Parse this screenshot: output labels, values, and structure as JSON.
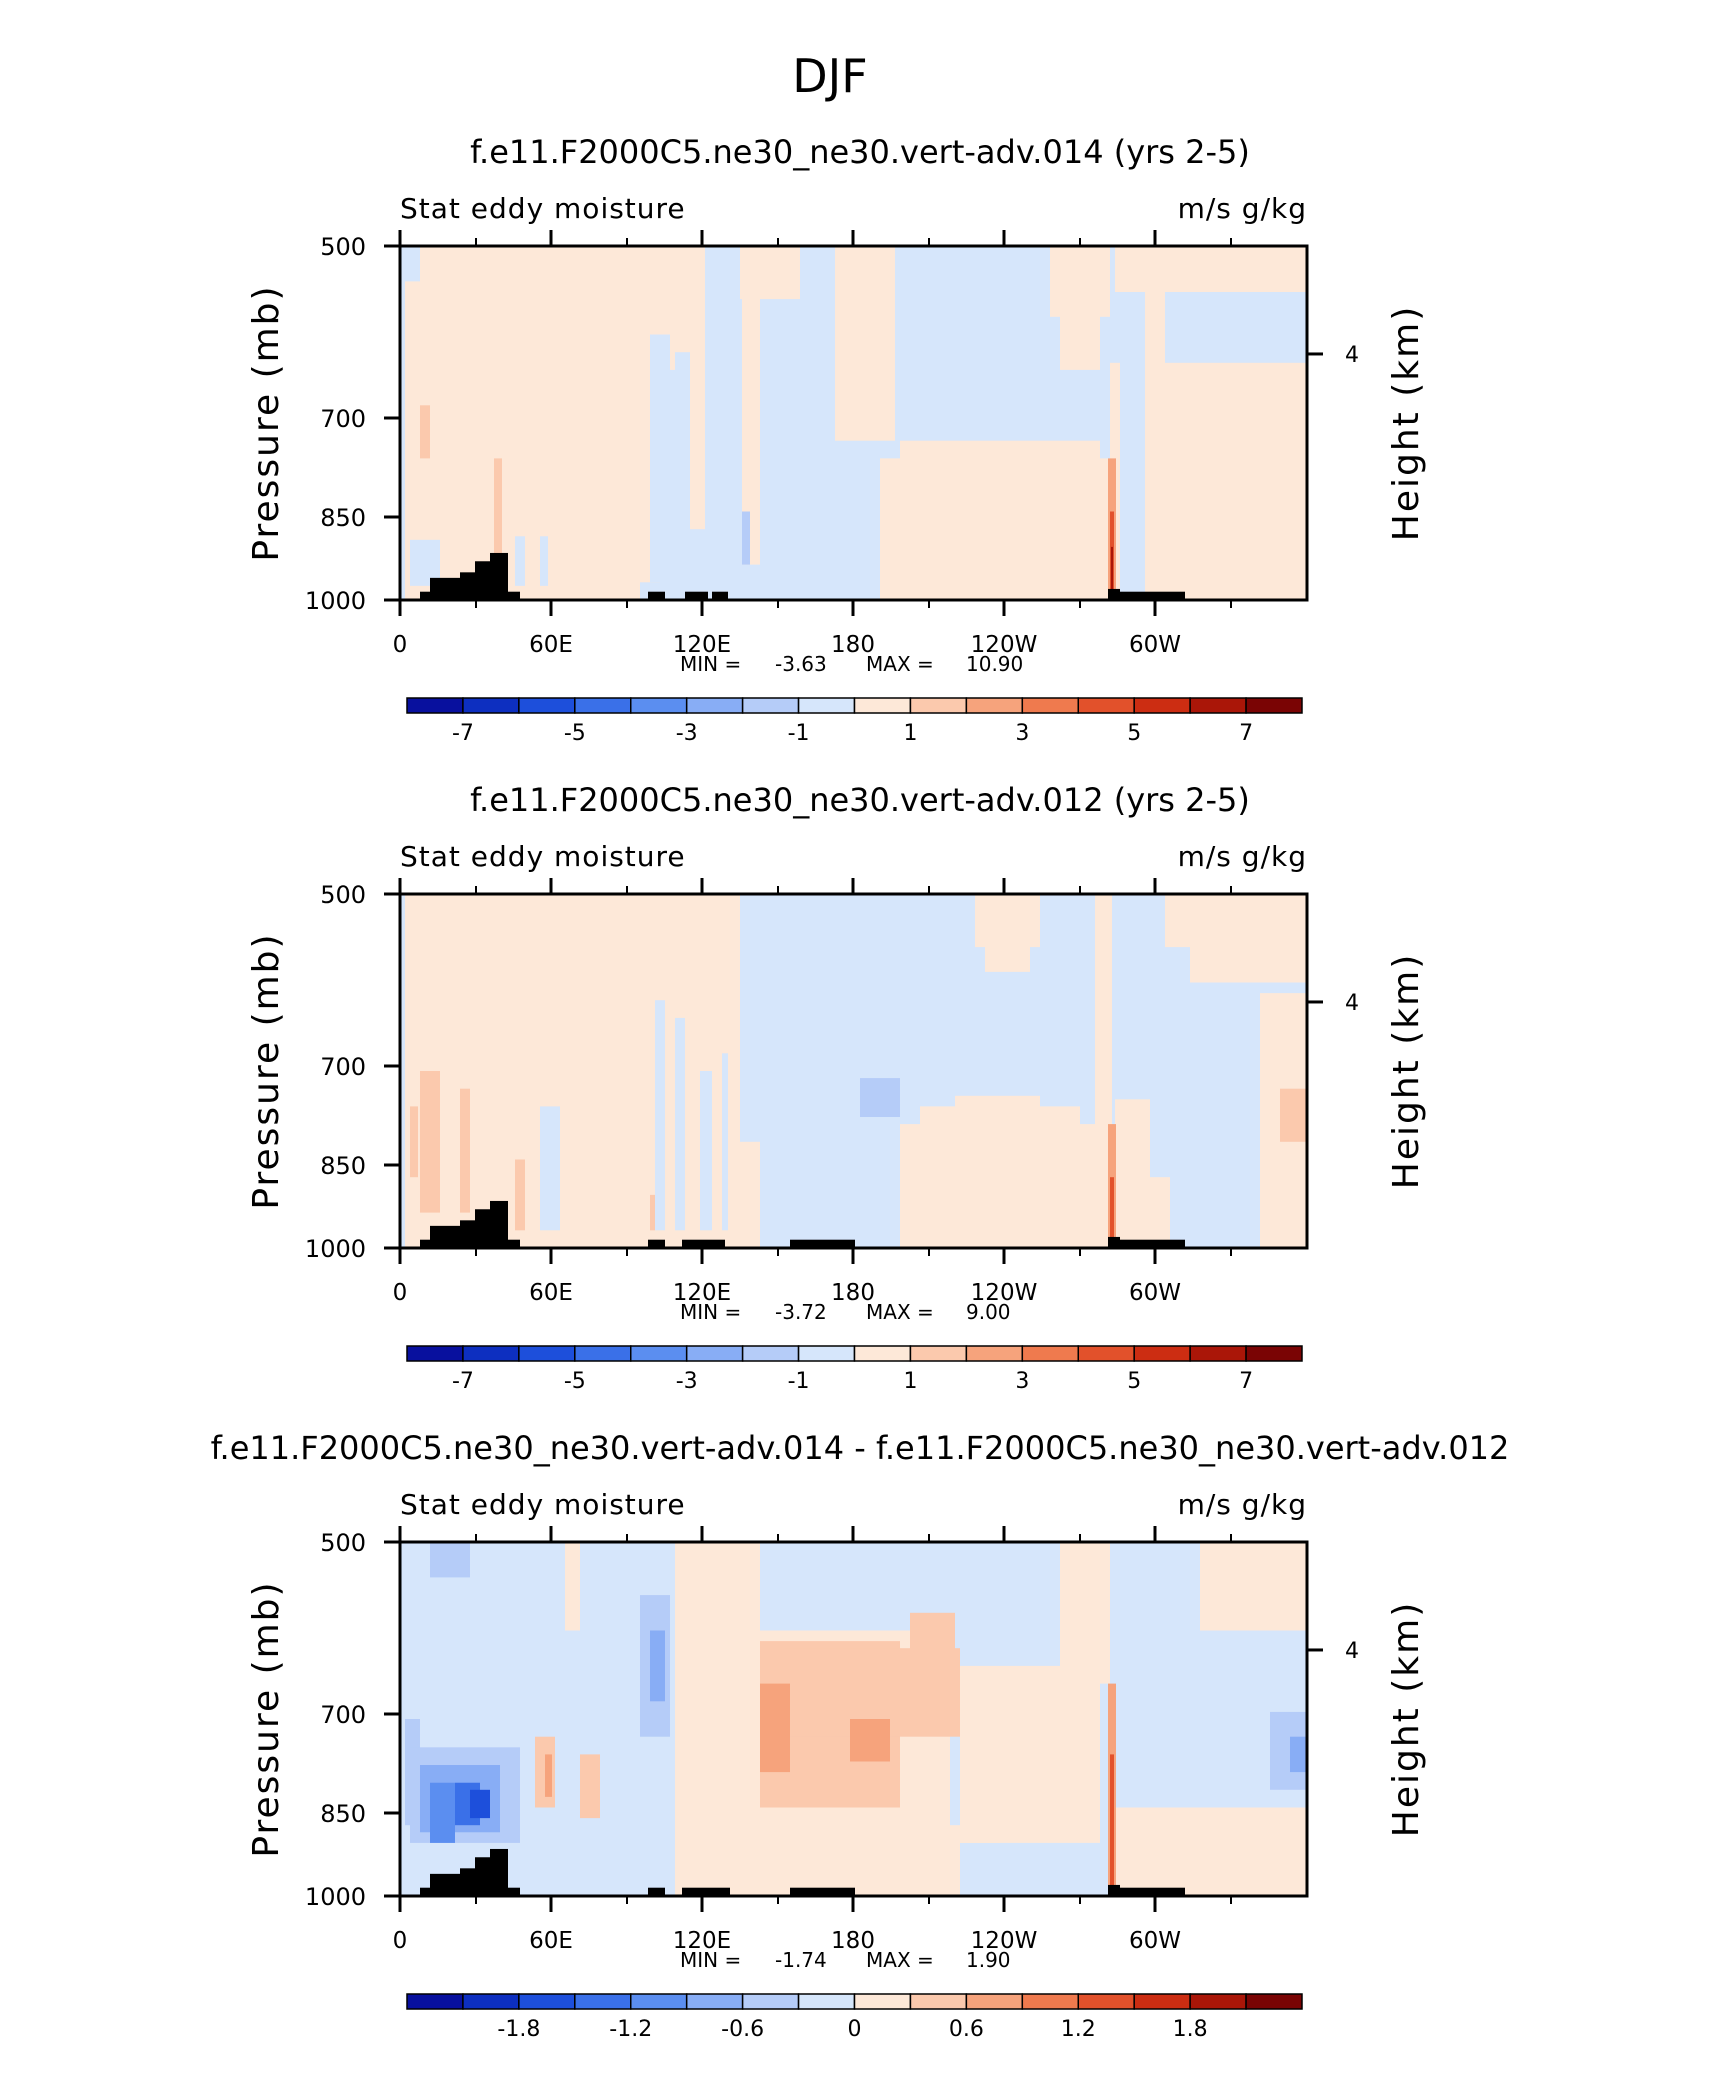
{
  "page_title": "DJF",
  "colors": {
    "colormap": [
      "#08109e",
      "#0d2fc0",
      "#1d4fdb",
      "#3a70e8",
      "#5b8ef0",
      "#88adf5",
      "#b5ccf8",
      "#d6e6fb",
      "#fde8d8",
      "#fbc9ad",
      "#f6a37c",
      "#ef7a4e",
      "#e2512b",
      "#cc2d12",
      "#aa1608",
      "#7a0404"
    ],
    "topography": "#000000"
  },
  "chart_data": [
    {
      "type": "heatmap",
      "title": "f.e11.F2000C5.ne30_ne30.vert-adv.014 (yrs 2-5)",
      "left_label": "Stat eddy moisture",
      "right_label": "m/s g/kg",
      "ylabel": "Pressure (mb)",
      "y2label": "Height (km)",
      "y_ticks": [
        "500",
        "700",
        "850",
        "1000"
      ],
      "y2_ticks": [
        "4"
      ],
      "x_ticks": [
        "0",
        "60E",
        "120E",
        "180",
        "120W",
        "60W"
      ],
      "stats": {
        "min_label": "MIN =",
        "min": "-3.63",
        "max_label": "MAX =",
        "max": "10.90"
      },
      "colorbar_ticks": [
        "-7",
        "-5",
        "-3",
        "-1",
        "1",
        "3",
        "5",
        "7"
      ],
      "ylim": [
        1000,
        500
      ],
      "xlim": [
        0,
        360
      ]
    },
    {
      "type": "heatmap",
      "title": "f.e11.F2000C5.ne30_ne30.vert-adv.012 (yrs 2-5)",
      "left_label": "Stat eddy moisture",
      "right_label": "m/s g/kg",
      "ylabel": "Pressure (mb)",
      "y2label": "Height (km)",
      "y_ticks": [
        "500",
        "700",
        "850",
        "1000"
      ],
      "y2_ticks": [
        "4"
      ],
      "x_ticks": [
        "0",
        "60E",
        "120E",
        "180",
        "120W",
        "60W"
      ],
      "stats": {
        "min_label": "MIN =",
        "min": "-3.72",
        "max_label": "MAX =",
        "max": "9.00"
      },
      "colorbar_ticks": [
        "-7",
        "-5",
        "-3",
        "-1",
        "1",
        "3",
        "5",
        "7"
      ],
      "ylim": [
        1000,
        500
      ],
      "xlim": [
        0,
        360
      ]
    },
    {
      "type": "heatmap",
      "title": "f.e11.F2000C5.ne30_ne30.vert-adv.014 - f.e11.F2000C5.ne30_ne30.vert-adv.012",
      "left_label": "Stat eddy moisture",
      "right_label": "m/s g/kg",
      "ylabel": "Pressure (mb)",
      "y2label": "Height (km)",
      "y_ticks": [
        "500",
        "700",
        "850",
        "1000"
      ],
      "y2_ticks": [
        "4"
      ],
      "x_ticks": [
        "0",
        "60E",
        "120E",
        "180",
        "120W",
        "60W"
      ],
      "stats": {
        "min_label": "MIN =",
        "min": "-1.74",
        "max_label": "MAX =",
        "max": "1.90"
      },
      "colorbar_ticks": [
        "-1.8",
        "-1.2",
        "-0.6",
        "0",
        "0.6",
        "1.2",
        "1.8"
      ],
      "ylim": [
        1000,
        500
      ],
      "xlim": [
        0,
        360
      ]
    }
  ]
}
